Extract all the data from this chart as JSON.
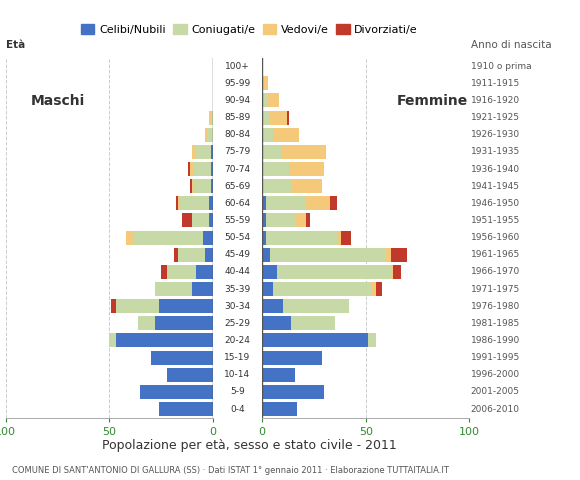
{
  "age_groups": [
    "0-4",
    "5-9",
    "10-14",
    "15-19",
    "20-24",
    "25-29",
    "30-34",
    "35-39",
    "40-44",
    "45-49",
    "50-54",
    "55-59",
    "60-64",
    "65-69",
    "70-74",
    "75-79",
    "80-84",
    "85-89",
    "90-94",
    "95-99",
    "100+"
  ],
  "birth_years": [
    "2006-2010",
    "2001-2005",
    "1996-2000",
    "1991-1995",
    "1986-1990",
    "1981-1985",
    "1976-1980",
    "1971-1975",
    "1966-1970",
    "1961-1965",
    "1956-1960",
    "1951-1955",
    "1946-1950",
    "1941-1945",
    "1936-1940",
    "1931-1935",
    "1926-1930",
    "1921-1925",
    "1916-1920",
    "1911-1915",
    "1910 o prima"
  ],
  "males": {
    "celibi": [
      26,
      35,
      22,
      30,
      47,
      28,
      26,
      10,
      8,
      4,
      5,
      2,
      2,
      1,
      1,
      1,
      0,
      0,
      0,
      0,
      0
    ],
    "coniugati": [
      0,
      0,
      0,
      0,
      3,
      8,
      21,
      18,
      14,
      13,
      33,
      8,
      14,
      8,
      8,
      7,
      3,
      1,
      0,
      0,
      0
    ],
    "vedovi": [
      0,
      0,
      0,
      0,
      0,
      0,
      0,
      0,
      0,
      0,
      4,
      0,
      1,
      1,
      2,
      2,
      1,
      1,
      0,
      0,
      0
    ],
    "divorziati": [
      0,
      0,
      0,
      0,
      0,
      0,
      2,
      0,
      3,
      2,
      0,
      5,
      1,
      1,
      1,
      0,
      0,
      0,
      0,
      0,
      0
    ]
  },
  "females": {
    "nubili": [
      17,
      30,
      16,
      29,
      51,
      14,
      10,
      5,
      7,
      4,
      2,
      2,
      2,
      0,
      0,
      0,
      0,
      0,
      0,
      0,
      0
    ],
    "coniugate": [
      0,
      0,
      0,
      0,
      4,
      21,
      32,
      48,
      55,
      56,
      34,
      14,
      19,
      14,
      13,
      9,
      5,
      4,
      3,
      1,
      0
    ],
    "vedove": [
      0,
      0,
      0,
      0,
      0,
      0,
      0,
      2,
      1,
      2,
      2,
      5,
      12,
      15,
      17,
      22,
      13,
      8,
      5,
      2,
      0
    ],
    "divorziate": [
      0,
      0,
      0,
      0,
      0,
      0,
      0,
      3,
      4,
      8,
      5,
      2,
      3,
      0,
      0,
      0,
      0,
      1,
      0,
      0,
      0
    ]
  },
  "color_celibi": "#4472c4",
  "color_coniugati": "#c8d9a8",
  "color_vedovi": "#f5c97a",
  "color_divorziati": "#c0392b",
  "xlim_left": -100,
  "xlim_right": 100,
  "bg_color": "#ffffff",
  "grid_color": "#cccccc",
  "legend_labels": [
    "Celibi/Nubili",
    "Coniugati/e",
    "Vedovi/e",
    "Divorziati/e"
  ],
  "xlabel": "Popolazione per età, sesso e stato civile - 2011",
  "footer": "COMUNE DI SANT'ANTONIO DI GALLURA (SS) · Dati ISTAT 1° gennaio 2011 · Elaborazione TUTTAITALIA.IT",
  "title_eta": "Età",
  "title_anno": "Anno di nascita",
  "label_maschi": "Maschi",
  "label_femmine": "Femmine",
  "xtick_labels": [
    "100",
    "50",
    "0",
    "50",
    "100"
  ],
  "xtick_color": "#2e8b2e"
}
